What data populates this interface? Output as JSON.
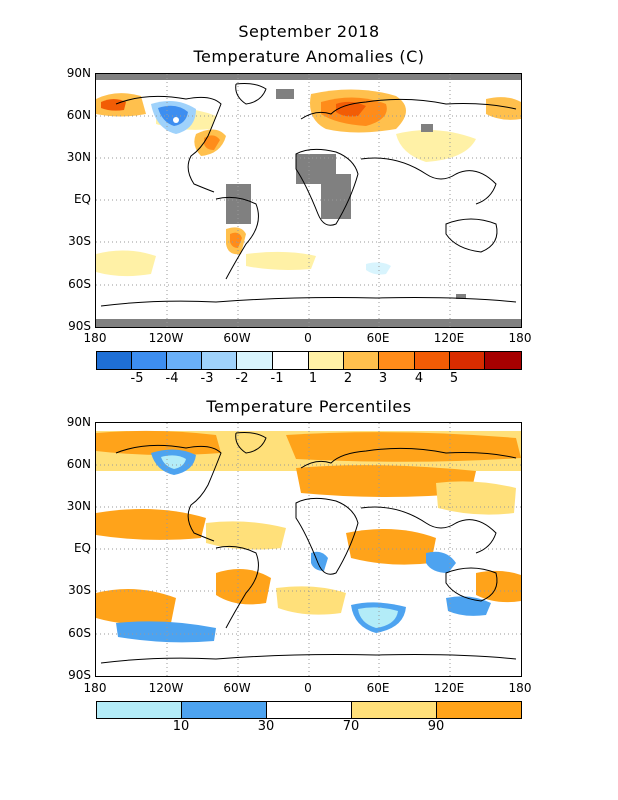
{
  "header": {
    "title_line1": "September 2018",
    "title_line2": "Temperature Anomalies (C)"
  },
  "percentile_title": "Temperature Percentiles",
  "axes": {
    "lat_labels": [
      "90N",
      "60N",
      "30N",
      "EQ",
      "30S",
      "60S",
      "90S"
    ],
    "lon_labels": [
      "180",
      "120W",
      "60W",
      "0",
      "60E",
      "120E",
      "180"
    ]
  },
  "anomaly_legend": {
    "colors": [
      "#1e6fd6",
      "#3d8ef0",
      "#6ab0f8",
      "#9fd2fb",
      "#d8f4fd",
      "#ffffff",
      "#fff1a6",
      "#ffc04d",
      "#ff8c1a",
      "#f25c05",
      "#d92c00",
      "#a60000"
    ],
    "labels": [
      "-5",
      "-4",
      "-3",
      "-2",
      "-1",
      "1",
      "2",
      "3",
      "4",
      "5"
    ]
  },
  "percentile_legend": {
    "colors": [
      "#b3ecf8",
      "#4da3f0",
      "#ffffff",
      "#ffe07a",
      "#ffa31a"
    ],
    "labels": [
      "10",
      "30",
      "70",
      "90"
    ]
  },
  "colors": {
    "missing": "#808080",
    "grid": "#9a9a9a",
    "coast": "#000000"
  }
}
